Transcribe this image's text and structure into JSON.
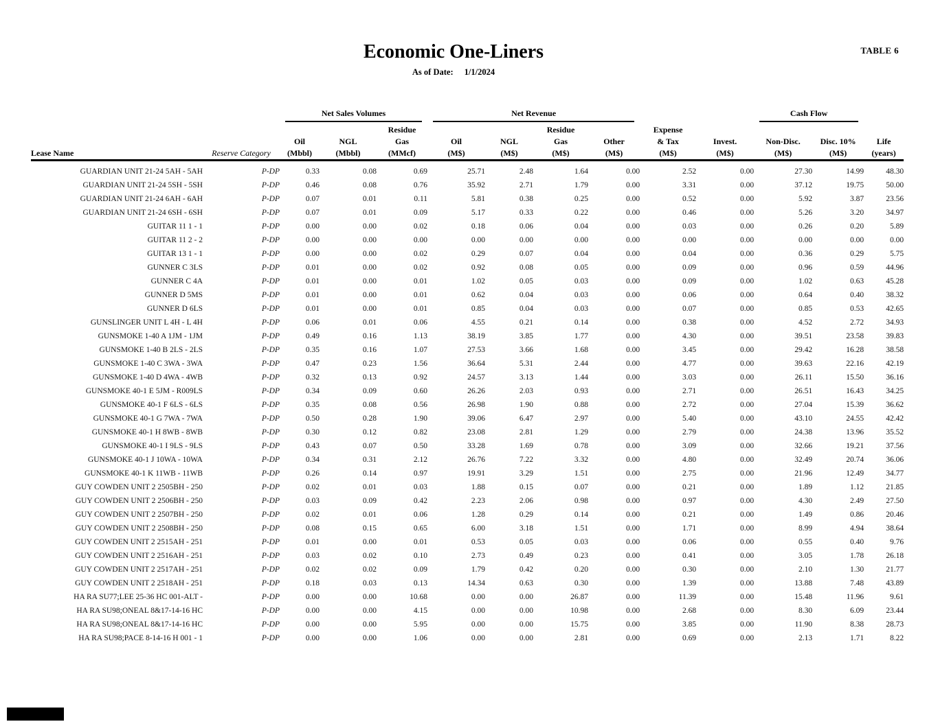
{
  "header": {
    "table_label": "TABLE 6",
    "title": "Economic One-Liners",
    "as_of_label": "As of Date:",
    "as_of_date": "1/1/2024"
  },
  "footer": {
    "redaction_box_color": "#000000"
  },
  "table": {
    "groups": [
      {
        "label": "Net Sales Volumes",
        "start": 2,
        "span": 3
      },
      {
        "label": "Net Revenue",
        "start": 5,
        "span": 4
      },
      {
        "label": "Cash Flow",
        "start": 11,
        "span": 2
      }
    ],
    "columns": [
      {
        "id": "lease",
        "label": "Lease Name"
      },
      {
        "id": "category",
        "label": "Reserve Category"
      },
      {
        "id": "oil_vol",
        "lines": [
          "Oil",
          "(Mbbl)"
        ]
      },
      {
        "id": "ngl_vol",
        "lines": [
          "NGL",
          "(Mbbl)"
        ]
      },
      {
        "id": "gas_vol",
        "lines": [
          "Residue",
          "Gas",
          "(MMcf)"
        ]
      },
      {
        "id": "oil_rev",
        "lines": [
          "Oil",
          "(M$)"
        ]
      },
      {
        "id": "ngl_rev",
        "lines": [
          "NGL",
          "(M$)"
        ]
      },
      {
        "id": "gas_rev",
        "lines": [
          "Residue",
          "Gas",
          "(M$)"
        ]
      },
      {
        "id": "other_rev",
        "lines": [
          "Other",
          "(M$)"
        ]
      },
      {
        "id": "expense_tax",
        "lines": [
          "Expense",
          "& Tax",
          "(M$)"
        ]
      },
      {
        "id": "invest",
        "lines": [
          "Invest.",
          "(M$)"
        ]
      },
      {
        "id": "cf_nondisc",
        "lines": [
          "Non-Disc.",
          "(M$)"
        ]
      },
      {
        "id": "cf_disc",
        "lines": [
          "Disc. 10%",
          "(M$)"
        ]
      },
      {
        "id": "life",
        "lines": [
          "Life",
          "(years)"
        ]
      }
    ],
    "rows": [
      {
        "lease": "GUARDIAN UNIT 21-24 5AH - 5AH",
        "category": "P-DP",
        "values": [
          "0.33",
          "0.08",
          "0.69",
          "25.71",
          "2.48",
          "1.64",
          "0.00",
          "2.52",
          "0.00",
          "27.30",
          "14.99",
          "48.30"
        ]
      },
      {
        "lease": "GUARDIAN UNIT 21-24 5SH - 5SH",
        "category": "P-DP",
        "values": [
          "0.46",
          "0.08",
          "0.76",
          "35.92",
          "2.71",
          "1.79",
          "0.00",
          "3.31",
          "0.00",
          "37.12",
          "19.75",
          "50.00"
        ]
      },
      {
        "lease": "GUARDIAN UNIT 21-24 6AH - 6AH",
        "category": "P-DP",
        "values": [
          "0.07",
          "0.01",
          "0.11",
          "5.81",
          "0.38",
          "0.25",
          "0.00",
          "0.52",
          "0.00",
          "5.92",
          "3.87",
          "23.56"
        ]
      },
      {
        "lease": "GUARDIAN UNIT 21-24 6SH - 6SH",
        "category": "P-DP",
        "values": [
          "0.07",
          "0.01",
          "0.09",
          "5.17",
          "0.33",
          "0.22",
          "0.00",
          "0.46",
          "0.00",
          "5.26",
          "3.20",
          "34.97"
        ]
      },
      {
        "lease": "GUITAR 11 1 - 1",
        "category": "P-DP",
        "values": [
          "0.00",
          "0.00",
          "0.02",
          "0.18",
          "0.06",
          "0.04",
          "0.00",
          "0.03",
          "0.00",
          "0.26",
          "0.20",
          "5.89"
        ]
      },
      {
        "lease": "GUITAR 11 2 - 2",
        "category": "P-DP",
        "values": [
          "0.00",
          "0.00",
          "0.00",
          "0.00",
          "0.00",
          "0.00",
          "0.00",
          "0.00",
          "0.00",
          "0.00",
          "0.00",
          "0.00"
        ]
      },
      {
        "lease": "GUITAR 13 1 - 1",
        "category": "P-DP",
        "values": [
          "0.00",
          "0.00",
          "0.02",
          "0.29",
          "0.07",
          "0.04",
          "0.00",
          "0.04",
          "0.00",
          "0.36",
          "0.29",
          "5.75"
        ]
      },
      {
        "lease": "GUNNER C 3LS",
        "category": "P-DP",
        "values": [
          "0.01",
          "0.00",
          "0.02",
          "0.92",
          "0.08",
          "0.05",
          "0.00",
          "0.09",
          "0.00",
          "0.96",
          "0.59",
          "44.96"
        ]
      },
      {
        "lease": "GUNNER C 4A",
        "category": "P-DP",
        "values": [
          "0.01",
          "0.00",
          "0.01",
          "1.02",
          "0.05",
          "0.03",
          "0.00",
          "0.09",
          "0.00",
          "1.02",
          "0.63",
          "45.28"
        ]
      },
      {
        "lease": "GUNNER D 5MS",
        "category": "P-DP",
        "values": [
          "0.01",
          "0.00",
          "0.01",
          "0.62",
          "0.04",
          "0.03",
          "0.00",
          "0.06",
          "0.00",
          "0.64",
          "0.40",
          "38.32"
        ]
      },
      {
        "lease": "GUNNER D 6LS",
        "category": "P-DP",
        "values": [
          "0.01",
          "0.00",
          "0.01",
          "0.85",
          "0.04",
          "0.03",
          "0.00",
          "0.07",
          "0.00",
          "0.85",
          "0.53",
          "42.65"
        ]
      },
      {
        "lease": "GUNSLINGER UNIT L 4H - L 4H",
        "category": "P-DP",
        "values": [
          "0.06",
          "0.01",
          "0.06",
          "4.55",
          "0.21",
          "0.14",
          "0.00",
          "0.38",
          "0.00",
          "4.52",
          "2.72",
          "34.93"
        ]
      },
      {
        "lease": "GUNSMOKE 1-40 A 1JM - 1JM",
        "category": "P-DP",
        "values": [
          "0.49",
          "0.16",
          "1.13",
          "38.19",
          "3.85",
          "1.77",
          "0.00",
          "4.30",
          "0.00",
          "39.51",
          "23.58",
          "39.83"
        ]
      },
      {
        "lease": "GUNSMOKE 1-40 B 2LS - 2LS",
        "category": "P-DP",
        "values": [
          "0.35",
          "0.16",
          "1.07",
          "27.53",
          "3.66",
          "1.68",
          "0.00",
          "3.45",
          "0.00",
          "29.42",
          "16.28",
          "38.58"
        ]
      },
      {
        "lease": "GUNSMOKE 1-40 C 3WA - 3WA",
        "category": "P-DP",
        "values": [
          "0.47",
          "0.23",
          "1.56",
          "36.64",
          "5.31",
          "2.44",
          "0.00",
          "4.77",
          "0.00",
          "39.63",
          "22.16",
          "42.19"
        ]
      },
      {
        "lease": "GUNSMOKE 1-40 D 4WA - 4WB",
        "category": "P-DP",
        "values": [
          "0.32",
          "0.13",
          "0.92",
          "24.57",
          "3.13",
          "1.44",
          "0.00",
          "3.03",
          "0.00",
          "26.11",
          "15.50",
          "36.16"
        ]
      },
      {
        "lease": "GUNSMOKE 40-1 E 5JM - R009LS",
        "category": "P-DP",
        "values": [
          "0.34",
          "0.09",
          "0.60",
          "26.26",
          "2.03",
          "0.93",
          "0.00",
          "2.71",
          "0.00",
          "26.51",
          "16.43",
          "34.25"
        ]
      },
      {
        "lease": "GUNSMOKE 40-1 F 6LS - 6LS",
        "category": "P-DP",
        "values": [
          "0.35",
          "0.08",
          "0.56",
          "26.98",
          "1.90",
          "0.88",
          "0.00",
          "2.72",
          "0.00",
          "27.04",
          "15.39",
          "36.62"
        ]
      },
      {
        "lease": "GUNSMOKE 40-1 G 7WA - 7WA",
        "category": "P-DP",
        "values": [
          "0.50",
          "0.28",
          "1.90",
          "39.06",
          "6.47",
          "2.97",
          "0.00",
          "5.40",
          "0.00",
          "43.10",
          "24.55",
          "42.42"
        ]
      },
      {
        "lease": "GUNSMOKE 40-1 H 8WB - 8WB",
        "category": "P-DP",
        "values": [
          "0.30",
          "0.12",
          "0.82",
          "23.08",
          "2.81",
          "1.29",
          "0.00",
          "2.79",
          "0.00",
          "24.38",
          "13.96",
          "35.52"
        ]
      },
      {
        "lease": "GUNSMOKE 40-1 I 9LS - 9LS",
        "category": "P-DP",
        "values": [
          "0.43",
          "0.07",
          "0.50",
          "33.28",
          "1.69",
          "0.78",
          "0.00",
          "3.09",
          "0.00",
          "32.66",
          "19.21",
          "37.56"
        ]
      },
      {
        "lease": "GUNSMOKE 40-1 J 10WA - 10WA",
        "category": "P-DP",
        "values": [
          "0.34",
          "0.31",
          "2.12",
          "26.76",
          "7.22",
          "3.32",
          "0.00",
          "4.80",
          "0.00",
          "32.49",
          "20.74",
          "36.06"
        ]
      },
      {
        "lease": "GUNSMOKE 40-1 K 11WB - 11WB",
        "category": "P-DP",
        "values": [
          "0.26",
          "0.14",
          "0.97",
          "19.91",
          "3.29",
          "1.51",
          "0.00",
          "2.75",
          "0.00",
          "21.96",
          "12.49",
          "34.77"
        ]
      },
      {
        "lease": "GUY COWDEN UNIT 2 2505BH - 250",
        "category": "P-DP",
        "values": [
          "0.02",
          "0.01",
          "0.03",
          "1.88",
          "0.15",
          "0.07",
          "0.00",
          "0.21",
          "0.00",
          "1.89",
          "1.12",
          "21.85"
        ]
      },
      {
        "lease": "GUY COWDEN UNIT 2 2506BH - 250",
        "category": "P-DP",
        "values": [
          "0.03",
          "0.09",
          "0.42",
          "2.23",
          "2.06",
          "0.98",
          "0.00",
          "0.97",
          "0.00",
          "4.30",
          "2.49",
          "27.50"
        ]
      },
      {
        "lease": "GUY COWDEN UNIT 2 2507BH - 250",
        "category": "P-DP",
        "values": [
          "0.02",
          "0.01",
          "0.06",
          "1.28",
          "0.29",
          "0.14",
          "0.00",
          "0.21",
          "0.00",
          "1.49",
          "0.86",
          "20.46"
        ]
      },
      {
        "lease": "GUY COWDEN UNIT 2 2508BH - 250",
        "category": "P-DP",
        "values": [
          "0.08",
          "0.15",
          "0.65",
          "6.00",
          "3.18",
          "1.51",
          "0.00",
          "1.71",
          "0.00",
          "8.99",
          "4.94",
          "38.64"
        ]
      },
      {
        "lease": "GUY COWDEN UNIT 2 2515AH - 251",
        "category": "P-DP",
        "values": [
          "0.01",
          "0.00",
          "0.01",
          "0.53",
          "0.05",
          "0.03",
          "0.00",
          "0.06",
          "0.00",
          "0.55",
          "0.40",
          "9.76"
        ]
      },
      {
        "lease": "GUY COWDEN UNIT 2 2516AH - 251",
        "category": "P-DP",
        "values": [
          "0.03",
          "0.02",
          "0.10",
          "2.73",
          "0.49",
          "0.23",
          "0.00",
          "0.41",
          "0.00",
          "3.05",
          "1.78",
          "26.18"
        ]
      },
      {
        "lease": "GUY COWDEN UNIT 2 2517AH - 251",
        "category": "P-DP",
        "values": [
          "0.02",
          "0.02",
          "0.09",
          "1.79",
          "0.42",
          "0.20",
          "0.00",
          "0.30",
          "0.00",
          "2.10",
          "1.30",
          "21.77"
        ]
      },
      {
        "lease": "GUY COWDEN UNIT 2 2518AH - 251",
        "category": "P-DP",
        "values": [
          "0.18",
          "0.03",
          "0.13",
          "14.34",
          "0.63",
          "0.30",
          "0.00",
          "1.39",
          "0.00",
          "13.88",
          "7.48",
          "43.89"
        ]
      },
      {
        "lease": "HA RA SU77;LEE 25-36 HC 001-ALT -",
        "category": "P-DP",
        "values": [
          "0.00",
          "0.00",
          "10.68",
          "0.00",
          "0.00",
          "26.87",
          "0.00",
          "11.39",
          "0.00",
          "15.48",
          "11.96",
          "9.61"
        ]
      },
      {
        "lease": "HA RA SU98;ONEAL 8&17-14-16 HC",
        "category": "P-DP",
        "values": [
          "0.00",
          "0.00",
          "4.15",
          "0.00",
          "0.00",
          "10.98",
          "0.00",
          "2.68",
          "0.00",
          "8.30",
          "6.09",
          "23.44"
        ]
      },
      {
        "lease": "HA RA SU98;ONEAL 8&17-14-16 HC",
        "category": "P-DP",
        "values": [
          "0.00",
          "0.00",
          "5.95",
          "0.00",
          "0.00",
          "15.75",
          "0.00",
          "3.85",
          "0.00",
          "11.90",
          "8.38",
          "28.73"
        ]
      },
      {
        "lease": "HA RA SU98;PACE 8-14-16 H 001 - 1",
        "category": "P-DP",
        "values": [
          "0.00",
          "0.00",
          "1.06",
          "0.00",
          "0.00",
          "2.81",
          "0.00",
          "0.69",
          "0.00",
          "2.13",
          "1.71",
          "8.22"
        ]
      }
    ]
  }
}
